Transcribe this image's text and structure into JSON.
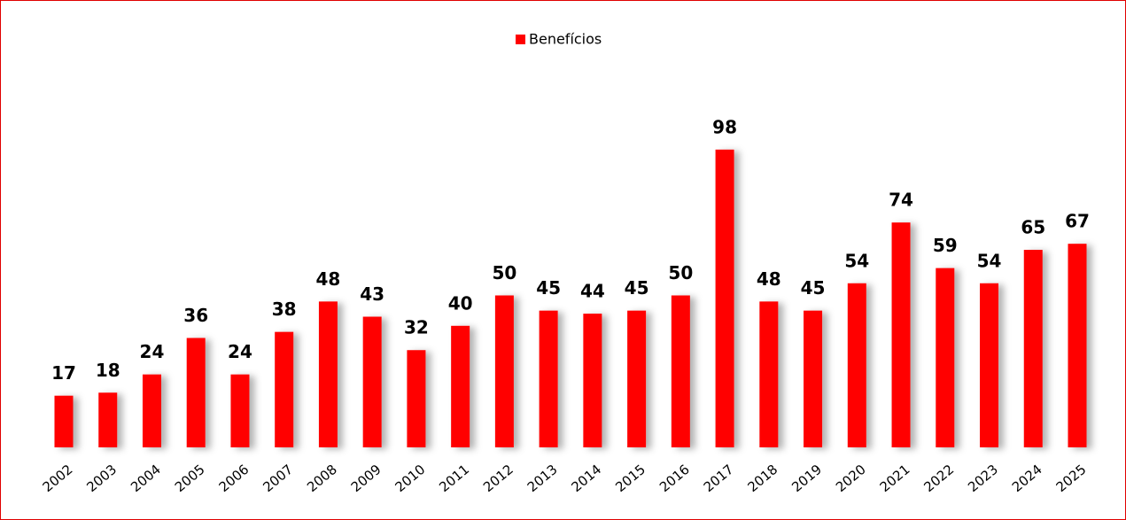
{
  "chart_data": {
    "type": "bar",
    "categories": [
      "2002",
      "2003",
      "2004",
      "2005",
      "2006",
      "2007",
      "2008",
      "2009",
      "2010",
      "2011",
      "2012",
      "2013",
      "2014",
      "2015",
      "2016",
      "2017",
      "2018",
      "2019",
      "2020",
      "2021",
      "2022",
      "2023",
      "2024",
      "2025"
    ],
    "series": [
      {
        "name": "Benefícios",
        "color": "#ff0000",
        "values": [
          17,
          18,
          24,
          36,
          24,
          38,
          48,
          43,
          32,
          40,
          50,
          45,
          44,
          45,
          50,
          98,
          48,
          45,
          54,
          74,
          59,
          54,
          65,
          67
        ]
      }
    ],
    "ylim": [
      0,
      100
    ],
    "legend": "top"
  }
}
